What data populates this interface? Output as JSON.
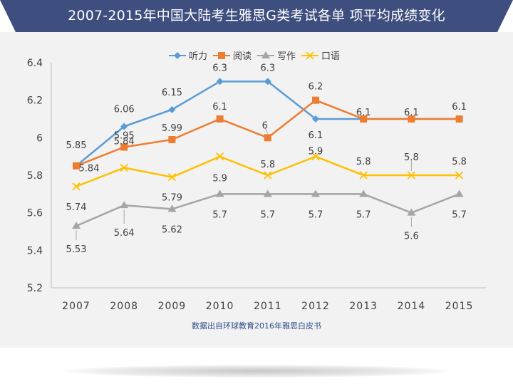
{
  "banner": {
    "title": "2007-2015年中国大陆考生雅思G类考试各单 项平均成绩变化"
  },
  "colors": {
    "banner": "#3e4e7e",
    "panel": "#f2f2f2"
  },
  "chart_data": {
    "type": "line",
    "categories": [
      "2007",
      "2008",
      "2009",
      "2010",
      "2011",
      "2012",
      "2013",
      "2014",
      "2015"
    ],
    "ylim": [
      5.2,
      6.4
    ],
    "yticks": [
      "5.2",
      "5.4",
      "5.6",
      "5.8",
      "6",
      "6.2",
      "6.4"
    ],
    "grid": false,
    "legend_position": "top-center",
    "source_note": "数据出自环球教育2016年雅思白皮书",
    "series": [
      {
        "name": "听力",
        "color": "#5b9bd5",
        "marker": "diamond",
        "values": [
          5.85,
          6.06,
          6.15,
          6.3,
          6.3,
          6.1,
          6.1,
          6.1,
          6.1
        ],
        "labels": [
          "5.85",
          "6.06",
          "6.15",
          "6.3",
          "6.3",
          "6.1",
          "",
          "",
          ""
        ]
      },
      {
        "name": "阅读",
        "color": "#ed7d31",
        "marker": "square",
        "values": [
          5.85,
          5.95,
          5.99,
          6.1,
          6.0,
          6.2,
          6.1,
          6.1,
          6.1
        ],
        "labels": [
          "",
          "5.95",
          "5.99",
          "6.1",
          "6",
          "6.2",
          "6.1",
          "6.1",
          "6.1"
        ]
      },
      {
        "name": "写作",
        "color": "#a5a5a5",
        "marker": "triangle",
        "values": [
          5.53,
          5.64,
          5.62,
          5.7,
          5.7,
          5.7,
          5.7,
          5.6,
          5.7
        ],
        "labels": [
          "5.53",
          "5.64",
          "5.62",
          "5.7",
          "5.7",
          "5.7",
          "5.7",
          "5.6",
          "5.7"
        ]
      },
      {
        "name": "口语",
        "color": "#ffc000",
        "marker": "x",
        "values": [
          5.74,
          5.84,
          5.79,
          5.9,
          5.8,
          5.9,
          5.8,
          5.8,
          5.8
        ],
        "labels": [
          "5.74",
          "5.84",
          "5.79",
          "5.9",
          "5.8",
          "5.9",
          "5.8",
          "5.8",
          "5.8"
        ]
      }
    ],
    "extra_label": {
      "text": "5.84"
    }
  }
}
